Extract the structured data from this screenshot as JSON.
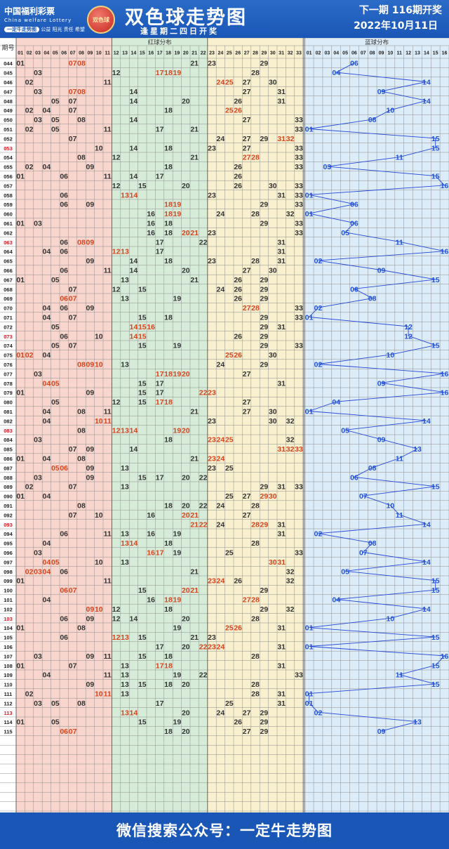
{
  "header": {
    "brand_cn": "中国福利彩票",
    "brand_en": "China welfare Lottery",
    "brand_badge": "一定牛走势图",
    "brand_slogan": "公益 阳光 责任 希望",
    "emblem_text": "双色球",
    "title": "双色球走势图",
    "subtitle": "逢星期二四日开奖",
    "next_issue": "下一期 116期开奖",
    "next_date": "2022年10月11日"
  },
  "footer": {
    "text": "微信搜索公众号：一定牛走势图"
  },
  "colors": {
    "zone1": "#f8d6cd",
    "zone2": "#d6ecd9",
    "zone3": "#f8f0cf",
    "blue_zone": "#dcecf8",
    "red_text": "#d8431c",
    "ball_text": "#333333",
    "blue_text": "#2050d8",
    "highlight_issue": "#d8202a",
    "grid": "#8f8f8f"
  },
  "chart_data": {
    "type": "table",
    "column_header": "期号",
    "red_zone_title": "红球分布",
    "blue_zone_title": "蓝球分布",
    "red_columns": [
      "01",
      "02",
      "03",
      "04",
      "05",
      "06",
      "07",
      "08",
      "09",
      "10",
      "11",
      "12",
      "13",
      "14",
      "15",
      "16",
      "17",
      "18",
      "19",
      "20",
      "21",
      "22",
      "23",
      "24",
      "25",
      "26",
      "27",
      "28",
      "29",
      "30",
      "31",
      "32",
      "33"
    ],
    "blue_columns": [
      "01",
      "02",
      "03",
      "04",
      "05",
      "06",
      "07",
      "08",
      "09",
      "10",
      "11",
      "12",
      "13",
      "14",
      "15",
      "16"
    ],
    "highlight_issues": [
      "053",
      "063",
      "073",
      "083",
      "093",
      "103",
      "113"
    ],
    "draws": [
      {
        "issue": "044",
        "red": [
          1,
          7,
          8,
          21,
          23,
          29
        ],
        "blue": 6
      },
      {
        "issue": "045",
        "red": [
          3,
          12,
          17,
          18,
          19,
          28
        ],
        "blue": 4
      },
      {
        "issue": "046",
        "red": [
          2,
          11,
          24,
          25,
          27,
          30
        ],
        "blue": 14
      },
      {
        "issue": "047",
        "red": [
          3,
          7,
          8,
          14,
          27,
          31
        ],
        "blue": 9
      },
      {
        "issue": "048",
        "red": [
          5,
          7,
          14,
          20,
          26,
          31
        ],
        "blue": 14
      },
      {
        "issue": "049",
        "red": [
          2,
          4,
          7,
          18,
          25,
          26
        ],
        "blue": 10
      },
      {
        "issue": "050",
        "red": [
          3,
          5,
          8,
          14,
          27,
          33
        ],
        "blue": 8
      },
      {
        "issue": "051",
        "red": [
          2,
          5,
          11,
          17,
          21,
          33
        ],
        "blue": 1
      },
      {
        "issue": "052",
        "red": [
          7,
          24,
          27,
          29,
          31,
          32
        ],
        "blue": 15
      },
      {
        "issue": "053",
        "red": [
          10,
          14,
          18,
          23,
          27,
          33
        ],
        "blue": 15
      },
      {
        "issue": "054",
        "red": [
          8,
          12,
          21,
          27,
          28,
          33
        ],
        "blue": 11
      },
      {
        "issue": "055",
        "red": [
          2,
          4,
          9,
          18,
          26,
          33
        ],
        "blue": 3
      },
      {
        "issue": "056",
        "red": [
          1,
          6,
          11,
          14,
          17,
          26
        ],
        "blue": 15
      },
      {
        "issue": "057",
        "red": [
          12,
          15,
          20,
          26,
          30,
          33
        ],
        "blue": 16
      },
      {
        "issue": "058",
        "red": [
          6,
          13,
          14,
          23,
          31,
          33
        ],
        "blue": 1
      },
      {
        "issue": "059",
        "red": [
          6,
          9,
          18,
          19,
          29,
          33
        ],
        "blue": 6
      },
      {
        "issue": "060",
        "red": [
          16,
          18,
          19,
          24,
          28,
          32
        ],
        "blue": 1
      },
      {
        "issue": "061",
        "red": [
          1,
          3,
          16,
          18,
          29,
          33
        ],
        "blue": 6
      },
      {
        "issue": "062",
        "red": [
          16,
          18,
          20,
          21,
          23,
          33
        ],
        "blue": 5
      },
      {
        "issue": "063",
        "red": [
          6,
          8,
          9,
          17,
          22,
          31
        ],
        "blue": 11
      },
      {
        "issue": "064",
        "red": [
          4,
          6,
          12,
          13,
          17,
          31
        ],
        "blue": 16
      },
      {
        "issue": "065",
        "red": [
          9,
          14,
          18,
          23,
          28,
          31
        ],
        "blue": 2
      },
      {
        "issue": "066",
        "red": [
          6,
          11,
          14,
          20,
          27,
          30
        ],
        "blue": 9
      },
      {
        "issue": "067",
        "red": [
          1,
          5,
          13,
          21,
          26,
          29
        ],
        "blue": 15
      },
      {
        "issue": "068",
        "red": [
          7,
          12,
          15,
          24,
          26,
          29
        ],
        "blue": 6
      },
      {
        "issue": "069",
        "red": [
          6,
          7,
          13,
          19,
          26,
          29
        ],
        "blue": 8
      },
      {
        "issue": "070",
        "red": [
          4,
          6,
          9,
          27,
          28,
          33
        ],
        "blue": 2
      },
      {
        "issue": "071",
        "red": [
          4,
          7,
          15,
          18,
          29,
          33
        ],
        "blue": 1
      },
      {
        "issue": "072",
        "red": [
          5,
          14,
          15,
          16,
          29,
          31
        ],
        "blue": 12
      },
      {
        "issue": "073",
        "red": [
          6,
          10,
          14,
          15,
          26,
          29
        ],
        "blue": 12
      },
      {
        "issue": "074",
        "red": [
          5,
          7,
          15,
          19,
          29,
          33
        ],
        "blue": 15
      },
      {
        "issue": "075",
        "red": [
          1,
          2,
          4,
          25,
          26,
          30
        ],
        "blue": 10
      },
      {
        "issue": "076",
        "red": [
          8,
          9,
          10,
          13,
          24,
          29
        ],
        "blue": 2
      },
      {
        "issue": "077",
        "red": [
          3,
          17,
          18,
          19,
          20,
          27
        ],
        "blue": 16
      },
      {
        "issue": "078",
        "red": [
          4,
          5,
          15,
          17,
          31
        ],
        "blue": 9
      },
      {
        "issue": "079",
        "red": [
          1,
          9,
          15,
          17,
          22,
          23
        ],
        "blue": 16
      },
      {
        "issue": "080",
        "red": [
          5,
          12,
          15,
          17,
          18,
          27
        ],
        "blue": 4
      },
      {
        "issue": "081",
        "red": [
          4,
          8,
          11,
          21,
          27,
          30
        ],
        "blue": 1
      },
      {
        "issue": "082",
        "red": [
          4,
          10,
          11,
          23,
          30,
          32
        ],
        "blue": 14
      },
      {
        "issue": "083",
        "red": [
          8,
          12,
          13,
          14,
          19,
          20
        ],
        "blue": 5
      },
      {
        "issue": "084",
        "red": [
          3,
          18,
          23,
          24,
          25,
          32
        ],
        "blue": 9
      },
      {
        "issue": "085",
        "red": [
          7,
          9,
          14,
          31,
          32,
          33
        ],
        "blue": 13
      },
      {
        "issue": "086",
        "red": [
          1,
          4,
          8,
          21,
          23,
          24
        ],
        "blue": 11
      },
      {
        "issue": "087",
        "red": [
          5,
          6,
          9,
          13,
          23,
          25
        ],
        "blue": 8
      },
      {
        "issue": "088",
        "red": [
          3,
          9,
          15,
          17,
          20,
          22
        ],
        "blue": 6
      },
      {
        "issue": "089",
        "red": [
          2,
          7,
          13,
          29,
          31,
          33
        ],
        "blue": 15
      },
      {
        "issue": "090",
        "red": [
          1,
          4,
          25,
          27,
          29,
          30
        ],
        "blue": 7
      },
      {
        "issue": "091",
        "red": [
          8,
          18,
          20,
          22,
          24,
          28
        ],
        "blue": 10
      },
      {
        "issue": "092",
        "red": [
          7,
          10,
          16,
          20,
          21,
          27
        ],
        "blue": 11
      },
      {
        "issue": "093",
        "red": [
          21,
          22,
          24,
          28,
          29,
          31
        ],
        "blue": 14
      },
      {
        "issue": "094",
        "red": [
          6,
          11,
          13,
          16,
          19,
          31
        ],
        "blue": 2
      },
      {
        "issue": "095",
        "red": [
          4,
          13,
          14,
          18,
          28
        ],
        "blue": 8
      },
      {
        "issue": "096",
        "red": [
          3,
          16,
          17,
          19,
          25,
          33
        ],
        "blue": 7
      },
      {
        "issue": "097",
        "red": [
          4,
          5,
          10,
          13,
          30,
          31
        ],
        "blue": 14
      },
      {
        "issue": "098",
        "red": [
          2,
          3,
          4,
          6,
          21,
          32
        ],
        "blue": 5
      },
      {
        "issue": "099",
        "red": [
          1,
          11,
          23,
          24,
          26,
          32
        ],
        "blue": 15
      },
      {
        "issue": "100",
        "red": [
          6,
          7,
          15,
          20,
          21,
          29
        ],
        "blue": 15
      },
      {
        "issue": "101",
        "red": [
          4,
          16,
          18,
          19,
          27,
          28
        ],
        "blue": 4
      },
      {
        "issue": "102",
        "red": [
          9,
          10,
          12,
          18,
          29,
          32
        ],
        "blue": 14
      },
      {
        "issue": "103",
        "red": [
          6,
          9,
          12,
          14,
          20,
          28
        ],
        "blue": 10
      },
      {
        "issue": "104",
        "red": [
          1,
          8,
          19,
          25,
          26,
          31
        ],
        "blue": 1
      },
      {
        "issue": "105",
        "red": [
          6,
          12,
          13,
          15,
          21,
          23
        ],
        "blue": 15
      },
      {
        "issue": "106",
        "red": [
          17,
          20,
          22,
          23,
          24,
          31
        ],
        "blue": 1
      },
      {
        "issue": "107",
        "red": [
          3,
          9,
          11,
          15,
          18,
          28
        ],
        "blue": 16
      },
      {
        "issue": "108",
        "red": [
          1,
          7,
          13,
          17,
          18,
          31
        ],
        "blue": 15
      },
      {
        "issue": "109",
        "red": [
          4,
          11,
          13,
          19,
          22,
          33
        ],
        "blue": 11
      },
      {
        "issue": "110",
        "red": [
          9,
          13,
          15,
          18,
          20,
          28
        ],
        "blue": 15
      },
      {
        "issue": "111",
        "red": [
          2,
          10,
          11,
          13,
          28,
          31
        ],
        "blue": 1
      },
      {
        "issue": "112",
        "red": [
          3,
          5,
          8,
          17,
          25,
          31
        ],
        "blue": 1
      },
      {
        "issue": "113",
        "red": [
          13,
          14,
          20,
          24,
          27,
          29
        ],
        "blue": 2
      },
      {
        "issue": "114",
        "red": [
          1,
          5,
          15,
          19,
          26,
          29
        ],
        "blue": 13
      },
      {
        "issue": "115",
        "red": [
          6,
          7,
          18,
          20,
          27,
          29
        ],
        "blue": 9
      }
    ]
  }
}
